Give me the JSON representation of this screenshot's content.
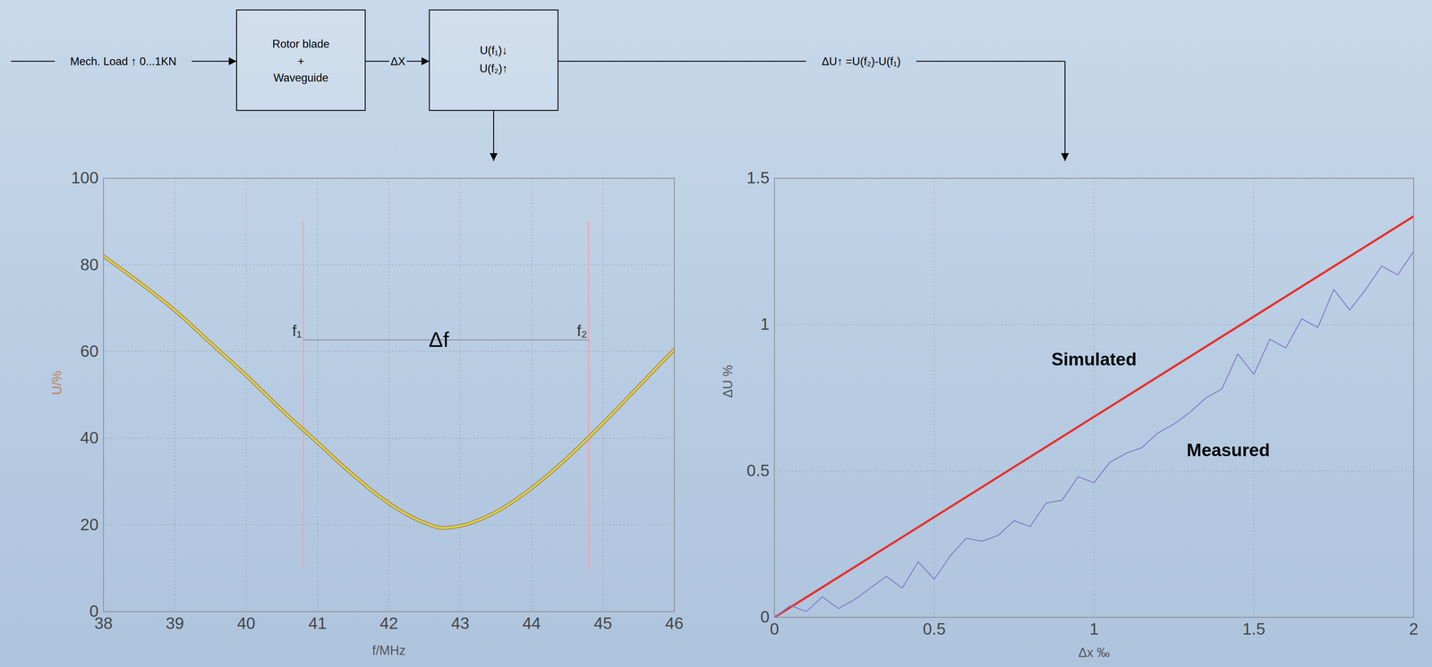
{
  "diagram": {
    "edges": [
      {
        "label": "Mech. Load ↑ 0...1KN"
      },
      {
        "label": "ΔX"
      },
      {
        "label": "ΔU↑ =U(f₂)-U(f₁)"
      }
    ],
    "nodes": [
      {
        "lines": [
          "Rotor blade",
          "+",
          "Waveguide"
        ]
      },
      {
        "lines": [
          "U(f₁)↓",
          "U(f₂)↑"
        ]
      }
    ]
  },
  "chart_data": [
    {
      "type": "line",
      "x_label": "f/MHz",
      "y_label": "U/%",
      "xlim": [
        38,
        46
      ],
      "ylim": [
        0,
        100
      ],
      "xticks": [
        38,
        39,
        40,
        41,
        42,
        43,
        44,
        45,
        46
      ],
      "yticks": [
        0,
        20,
        40,
        60,
        80,
        100
      ],
      "grid": true,
      "series": [
        {
          "color": "#e6d43e",
          "x": [
            38,
            38.5,
            39,
            39.5,
            40,
            40.5,
            41,
            41.5,
            42,
            42.5,
            42.75,
            43,
            43.5,
            44,
            44.5,
            45,
            45.5,
            46
          ],
          "values": [
            82,
            76,
            69.5,
            62,
            54.5,
            46.5,
            39,
            31.5,
            25,
            20.5,
            19.3,
            19.8,
            23,
            28.5,
            35.5,
            43.5,
            52,
            60.5
          ]
        }
      ],
      "annotations": [
        {
          "text": "f₁",
          "x": 40.8,
          "y1": 10,
          "y2": 90
        },
        {
          "text": "f₂",
          "x": 44.8,
          "y1": 10,
          "y2": 90
        },
        {
          "text": "Δf",
          "x1": 40.8,
          "x2": 44.8,
          "y": 62.7
        }
      ]
    },
    {
      "type": "line",
      "x_label": "Δx ‰",
      "y_label": "ΔU %",
      "xlim": [
        0,
        2
      ],
      "ylim": [
        0,
        1.5
      ],
      "xticks": [
        0,
        0.5,
        1,
        1.5,
        2
      ],
      "yticks": [
        0,
        0.5,
        1,
        1.5
      ],
      "grid": true,
      "series": [
        {
          "name": "Simulated",
          "color": "#e8302c",
          "label_at": [
            1.0,
            0.88
          ],
          "x": [
            0,
            2
          ],
          "values": [
            0,
            1.37
          ]
        },
        {
          "name": "Measured",
          "color": "#7b78c8",
          "label_at": [
            1.42,
            0.57
          ],
          "x": [
            0,
            0.05,
            0.1,
            0.15,
            0.2,
            0.25,
            0.3,
            0.35,
            0.4,
            0.45,
            0.5,
            0.55,
            0.6,
            0.65,
            0.7,
            0.75,
            0.8,
            0.85,
            0.9,
            0.95,
            1.0,
            1.05,
            1.1,
            1.15,
            1.2,
            1.25,
            1.3,
            1.35,
            1.4,
            1.45,
            1.5,
            1.55,
            1.6,
            1.65,
            1.7,
            1.75,
            1.8,
            1.85,
            1.9,
            1.95,
            2.0
          ],
          "values": [
            0,
            0.04,
            0.02,
            0.07,
            0.03,
            0.06,
            0.1,
            0.14,
            0.1,
            0.19,
            0.13,
            0.21,
            0.27,
            0.26,
            0.28,
            0.33,
            0.31,
            0.39,
            0.4,
            0.48,
            0.46,
            0.53,
            0.56,
            0.58,
            0.63,
            0.66,
            0.7,
            0.75,
            0.78,
            0.9,
            0.83,
            0.95,
            0.92,
            1.02,
            0.99,
            1.12,
            1.05,
            1.12,
            1.2,
            1.17,
            1.25
          ]
        }
      ]
    }
  ]
}
